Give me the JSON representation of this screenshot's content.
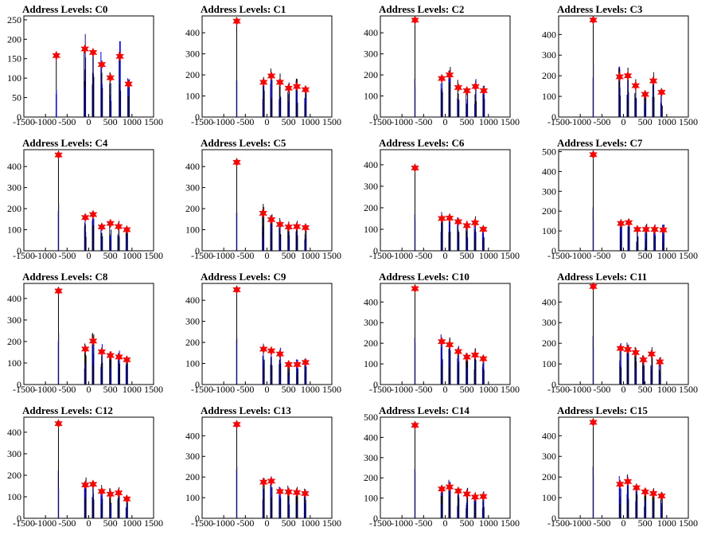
{
  "style": {
    "hist_color": "#0000ff",
    "base_color": "#000000",
    "marker_color": "#ff0000",
    "frame_color": "#000000"
  },
  "chart_data": [
    {
      "type": "bar",
      "title": "Address Levels: C0",
      "xlim": [
        -1500,
        1500
      ],
      "ylim": [
        0,
        260
      ],
      "yticks": [
        0,
        50,
        100,
        150,
        200,
        250
      ],
      "xticks": [
        -1500,
        -1000,
        -500,
        0,
        500,
        1000,
        1500
      ],
      "peaks": [
        {
          "x": -750,
          "y": 158
        },
        {
          "x": -90,
          "y": 175
        },
        {
          "x": 100,
          "y": 166
        },
        {
          "x": 300,
          "y": 135
        },
        {
          "x": 500,
          "y": 101
        },
        {
          "x": 720,
          "y": 156
        },
        {
          "x": 920,
          "y": 85
        }
      ]
    },
    {
      "type": "bar",
      "title": "Address Levels: C1",
      "xlim": [
        -1500,
        1500
      ],
      "ylim": [
        0,
        480
      ],
      "yticks": [
        0,
        100,
        200,
        300,
        400
      ],
      "xticks": [
        -1500,
        -1000,
        -500,
        0,
        500,
        1000,
        1500
      ],
      "peaks": [
        {
          "x": -700,
          "y": 455
        },
        {
          "x": -80,
          "y": 165
        },
        {
          "x": 100,
          "y": 195
        },
        {
          "x": 300,
          "y": 165
        },
        {
          "x": 500,
          "y": 137
        },
        {
          "x": 690,
          "y": 145
        },
        {
          "x": 890,
          "y": 130
        }
      ]
    },
    {
      "type": "bar",
      "title": "Address Levels: C2",
      "xlim": [
        -1500,
        1500
      ],
      "ylim": [
        0,
        480
      ],
      "yticks": [
        0,
        100,
        200,
        300,
        400
      ],
      "xticks": [
        -1500,
        -1000,
        -500,
        0,
        500,
        1000,
        1500
      ],
      "peaks": [
        {
          "x": -700,
          "y": 460
        },
        {
          "x": -80,
          "y": 183
        },
        {
          "x": 100,
          "y": 200
        },
        {
          "x": 300,
          "y": 140
        },
        {
          "x": 500,
          "y": 125
        },
        {
          "x": 700,
          "y": 145
        },
        {
          "x": 890,
          "y": 125
        }
      ]
    },
    {
      "type": "bar",
      "title": "Address Levels: C3",
      "xlim": [
        -1500,
        1500
      ],
      "ylim": [
        0,
        490
      ],
      "yticks": [
        0,
        100,
        200,
        300,
        400
      ],
      "xticks": [
        -1500,
        -1000,
        -500,
        0,
        500,
        1000,
        1500
      ],
      "peaks": [
        {
          "x": -700,
          "y": 470
        },
        {
          "x": -90,
          "y": 195
        },
        {
          "x": 100,
          "y": 200
        },
        {
          "x": 280,
          "y": 152
        },
        {
          "x": 500,
          "y": 110
        },
        {
          "x": 690,
          "y": 175
        },
        {
          "x": 880,
          "y": 120
        }
      ]
    },
    {
      "type": "bar",
      "title": "Address Levels: C4",
      "xlim": [
        -1500,
        1500
      ],
      "ylim": [
        0,
        480
      ],
      "yticks": [
        0,
        100,
        200,
        300,
        400
      ],
      "xticks": [
        -1500,
        -1000,
        -500,
        0,
        500,
        1000,
        1500
      ],
      "peaks": [
        {
          "x": -700,
          "y": 455
        },
        {
          "x": -80,
          "y": 158
        },
        {
          "x": 100,
          "y": 172
        },
        {
          "x": 300,
          "y": 113
        },
        {
          "x": 500,
          "y": 130
        },
        {
          "x": 690,
          "y": 115
        },
        {
          "x": 880,
          "y": 100
        }
      ]
    },
    {
      "type": "bar",
      "title": "Address Levels: C5",
      "xlim": [
        -1500,
        1500
      ],
      "ylim": [
        0,
        480
      ],
      "yticks": [
        0,
        100,
        200,
        300,
        400
      ],
      "xticks": [
        -1500,
        -1000,
        -500,
        0,
        500,
        1000,
        1500
      ],
      "peaks": [
        {
          "x": -700,
          "y": 420
        },
        {
          "x": -90,
          "y": 178
        },
        {
          "x": 100,
          "y": 148
        },
        {
          "x": 300,
          "y": 125
        },
        {
          "x": 500,
          "y": 113
        },
        {
          "x": 690,
          "y": 115
        },
        {
          "x": 890,
          "y": 110
        }
      ]
    },
    {
      "type": "bar",
      "title": "Address Levels: C6",
      "xlim": [
        -1500,
        1500
      ],
      "ylim": [
        0,
        470
      ],
      "yticks": [
        0,
        100,
        200,
        300,
        400
      ],
      "xticks": [
        -1500,
        -1000,
        -500,
        0,
        500,
        1000,
        1500
      ],
      "peaks": [
        {
          "x": -700,
          "y": 385
        },
        {
          "x": -80,
          "y": 150
        },
        {
          "x": 100,
          "y": 152
        },
        {
          "x": 300,
          "y": 135
        },
        {
          "x": 500,
          "y": 117
        },
        {
          "x": 690,
          "y": 130
        },
        {
          "x": 880,
          "y": 100
        }
      ]
    },
    {
      "type": "bar",
      "title": "Address Levels: C7",
      "xlim": [
        -1500,
        1500
      ],
      "ylim": [
        0,
        510
      ],
      "yticks": [
        0,
        100,
        200,
        300,
        400,
        500
      ],
      "xticks": [
        -1500,
        -1000,
        -500,
        0,
        500,
        1000,
        1500
      ],
      "peaks": [
        {
          "x": -700,
          "y": 485
        },
        {
          "x": -60,
          "y": 138
        },
        {
          "x": 120,
          "y": 142
        },
        {
          "x": 320,
          "y": 108
        },
        {
          "x": 520,
          "y": 108
        },
        {
          "x": 720,
          "y": 108
        },
        {
          "x": 920,
          "y": 105
        }
      ]
    },
    {
      "type": "bar",
      "title": "Address Levels: C8",
      "xlim": [
        -1500,
        1500
      ],
      "ylim": [
        0,
        470
      ],
      "yticks": [
        0,
        100,
        200,
        300,
        400
      ],
      "xticks": [
        -1500,
        -1000,
        -500,
        0,
        500,
        1000,
        1500
      ],
      "peaks": [
        {
          "x": -700,
          "y": 435
        },
        {
          "x": -80,
          "y": 165
        },
        {
          "x": 100,
          "y": 202
        },
        {
          "x": 300,
          "y": 152
        },
        {
          "x": 500,
          "y": 135
        },
        {
          "x": 700,
          "y": 128
        },
        {
          "x": 880,
          "y": 115
        }
      ]
    },
    {
      "type": "bar",
      "title": "Address Levels: C9",
      "xlim": [
        -1500,
        1500
      ],
      "ylim": [
        0,
        480
      ],
      "yticks": [
        0,
        100,
        200,
        300,
        400
      ],
      "xticks": [
        -1500,
        -1000,
        -500,
        0,
        500,
        1000,
        1500
      ],
      "peaks": [
        {
          "x": -700,
          "y": 450
        },
        {
          "x": -80,
          "y": 168
        },
        {
          "x": 100,
          "y": 160
        },
        {
          "x": 300,
          "y": 145
        },
        {
          "x": 500,
          "y": 95
        },
        {
          "x": 700,
          "y": 95
        },
        {
          "x": 890,
          "y": 105
        }
      ]
    },
    {
      "type": "bar",
      "title": "Address Levels: C10",
      "xlim": [
        -1500,
        1500
      ],
      "ylim": [
        0,
        490
      ],
      "yticks": [
        0,
        100,
        200,
        300,
        400
      ],
      "xticks": [
        -1500,
        -1000,
        -500,
        0,
        500,
        1000,
        1500
      ],
      "peaks": [
        {
          "x": -700,
          "y": 465
        },
        {
          "x": -80,
          "y": 208
        },
        {
          "x": 100,
          "y": 193
        },
        {
          "x": 300,
          "y": 160
        },
        {
          "x": 500,
          "y": 133
        },
        {
          "x": 690,
          "y": 143
        },
        {
          "x": 880,
          "y": 125
        }
      ]
    },
    {
      "type": "bar",
      "title": "Address Levels: C11",
      "xlim": [
        -1500,
        1500
      ],
      "ylim": [
        0,
        490
      ],
      "yticks": [
        0,
        100,
        200,
        300,
        400
      ],
      "xticks": [
        -1500,
        -1000,
        -500,
        0,
        500,
        1000,
        1500
      ],
      "peaks": [
        {
          "x": -700,
          "y": 475
        },
        {
          "x": -70,
          "y": 175
        },
        {
          "x": 100,
          "y": 170
        },
        {
          "x": 280,
          "y": 155
        },
        {
          "x": 460,
          "y": 120
        },
        {
          "x": 650,
          "y": 148
        },
        {
          "x": 840,
          "y": 110
        }
      ]
    },
    {
      "type": "bar",
      "title": "Address Levels: C12",
      "xlim": [
        -1500,
        1500
      ],
      "ylim": [
        0,
        470
      ],
      "yticks": [
        0,
        100,
        200,
        300,
        400
      ],
      "xticks": [
        -1500,
        -1000,
        -500,
        0,
        500,
        1000,
        1500
      ],
      "peaks": [
        {
          "x": -700,
          "y": 440
        },
        {
          "x": -80,
          "y": 155
        },
        {
          "x": 100,
          "y": 158
        },
        {
          "x": 300,
          "y": 125
        },
        {
          "x": 500,
          "y": 112
        },
        {
          "x": 690,
          "y": 118
        },
        {
          "x": 880,
          "y": 90
        }
      ]
    },
    {
      "type": "bar",
      "title": "Address Levels: C13",
      "xlim": [
        -1500,
        1500
      ],
      "ylim": [
        0,
        490
      ],
      "yticks": [
        0,
        100,
        200,
        300,
        400
      ],
      "xticks": [
        -1500,
        -1000,
        -500,
        0,
        500,
        1000,
        1500
      ],
      "peaks": [
        {
          "x": -700,
          "y": 455
        },
        {
          "x": -80,
          "y": 175
        },
        {
          "x": 100,
          "y": 180
        },
        {
          "x": 300,
          "y": 130
        },
        {
          "x": 500,
          "y": 128
        },
        {
          "x": 690,
          "y": 125
        },
        {
          "x": 880,
          "y": 120
        }
      ]
    },
    {
      "type": "bar",
      "title": "Address Levels: C14",
      "xlim": [
        -1500,
        1500
      ],
      "ylim": [
        0,
        500
      ],
      "yticks": [
        0,
        100,
        200,
        300,
        400,
        500
      ],
      "xticks": [
        -1500,
        -1000,
        -500,
        0,
        500,
        1000,
        1500
      ],
      "peaks": [
        {
          "x": -700,
          "y": 460
        },
        {
          "x": -80,
          "y": 145
        },
        {
          "x": 100,
          "y": 155
        },
        {
          "x": 300,
          "y": 135
        },
        {
          "x": 500,
          "y": 120
        },
        {
          "x": 690,
          "y": 105
        },
        {
          "x": 880,
          "y": 108
        }
      ]
    },
    {
      "type": "bar",
      "title": "Address Levels: C15",
      "xlim": [
        -1500,
        1500
      ],
      "ylim": [
        0,
        490
      ],
      "yticks": [
        0,
        100,
        200,
        300,
        400
      ],
      "xticks": [
        -1500,
        -1000,
        -500,
        0,
        500,
        1000,
        1500
      ],
      "peaks": [
        {
          "x": -700,
          "y": 465
        },
        {
          "x": -80,
          "y": 165
        },
        {
          "x": 100,
          "y": 178
        },
        {
          "x": 300,
          "y": 148
        },
        {
          "x": 500,
          "y": 128
        },
        {
          "x": 690,
          "y": 120
        },
        {
          "x": 880,
          "y": 108
        }
      ]
    }
  ]
}
